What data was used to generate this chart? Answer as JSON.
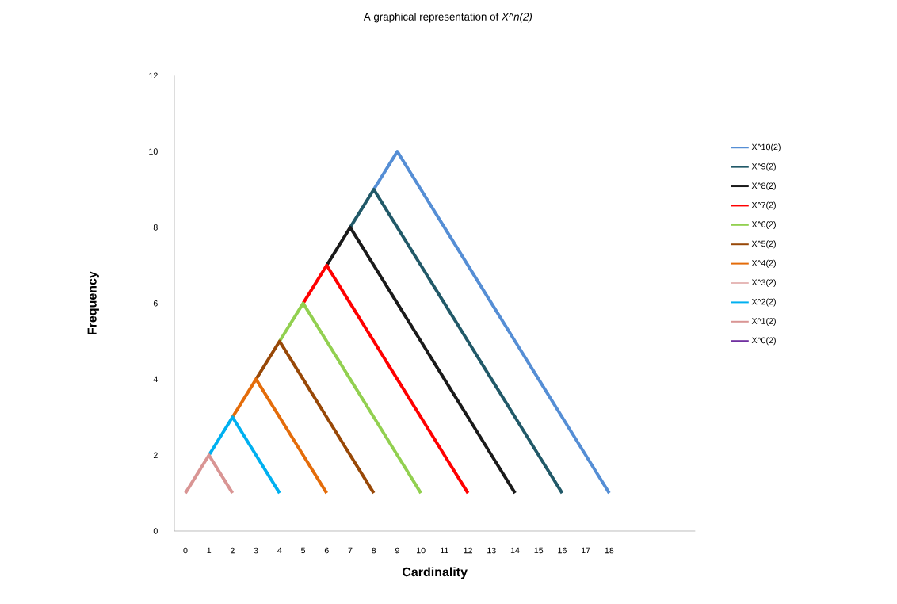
{
  "chart_data": {
    "type": "line",
    "title": "A graphical representation of *X^n(2)*",
    "xlabel": "Cardinality",
    "ylabel": "Frequency",
    "categories": [
      "0",
      "1",
      "2",
      "3",
      "4",
      "5",
      "6",
      "7",
      "8",
      "9",
      "10",
      "11",
      "12",
      "13",
      "14",
      "15",
      "16",
      "17",
      "18"
    ],
    "ylim": [
      0,
      12
    ],
    "yticks": [
      0,
      2,
      4,
      6,
      8,
      10,
      12
    ],
    "grid": false,
    "legend": "right",
    "marker": "none",
    "line_style": "solid",
    "series": [
      {
        "name": "X^10(2)",
        "color": "#558ed5",
        "values": [
          null,
          null,
          null,
          null,
          null,
          null,
          null,
          null,
          9,
          10,
          9,
          8,
          7,
          6,
          5,
          4,
          3,
          2,
          1
        ]
      },
      {
        "name": "X^9(2)",
        "color": "#215968",
        "values": [
          null,
          null,
          null,
          null,
          null,
          null,
          null,
          8,
          9,
          8,
          7,
          6,
          5,
          4,
          3,
          2,
          1,
          null,
          null
        ]
      },
      {
        "name": "X^8(2)",
        "color": "#1a1a1a",
        "values": [
          null,
          null,
          null,
          null,
          null,
          null,
          7,
          8,
          7,
          6,
          5,
          4,
          3,
          2,
          1,
          null,
          null,
          null,
          null
        ]
      },
      {
        "name": "X^7(2)",
        "color": "#ff0000",
        "values": [
          null,
          null,
          null,
          null,
          null,
          6,
          7,
          6,
          5,
          4,
          3,
          2,
          1,
          null,
          null,
          null,
          null,
          null,
          null
        ]
      },
      {
        "name": "X^6(2)",
        "color": "#92d050",
        "values": [
          null,
          null,
          null,
          null,
          5,
          6,
          5,
          4,
          3,
          2,
          1,
          null,
          null,
          null,
          null,
          null,
          null,
          null,
          null
        ]
      },
      {
        "name": "X^5(2)",
        "color": "#984807",
        "values": [
          null,
          null,
          null,
          4,
          5,
          4,
          3,
          2,
          1,
          null,
          null,
          null,
          null,
          null,
          null,
          null,
          null,
          null,
          null
        ]
      },
      {
        "name": "X^4(2)",
        "color": "#e46c0a",
        "values": [
          null,
          null,
          3,
          4,
          3,
          2,
          1,
          null,
          null,
          null,
          null,
          null,
          null,
          null,
          null,
          null,
          null,
          null,
          null
        ]
      },
      {
        "name": "X^3(2)",
        "color": "#e6b9b8",
        "values": [
          null,
          null,
          null,
          null,
          null,
          null,
          null,
          null,
          null,
          null,
          null,
          null,
          null,
          null,
          null,
          null,
          null,
          null,
          null
        ]
      },
      {
        "name": "X^2(2)",
        "color": "#00b0f0",
        "values": [
          null,
          2,
          3,
          2,
          1,
          null,
          null,
          null,
          null,
          null,
          null,
          null,
          null,
          null,
          null,
          null,
          null,
          null,
          null
        ]
      },
      {
        "name": "X^1(2)",
        "color": "#d99594",
        "values": [
          1,
          2,
          1,
          null,
          null,
          null,
          null,
          null,
          null,
          null,
          null,
          null,
          null,
          null,
          null,
          null,
          null,
          null,
          null
        ]
      },
      {
        "name": "X^0(2)",
        "color": "#7030a0",
        "values": [
          null,
          null,
          null,
          null,
          null,
          null,
          null,
          null,
          null,
          null,
          null,
          null,
          null,
          null,
          null,
          null,
          null,
          null,
          null
        ]
      }
    ]
  }
}
